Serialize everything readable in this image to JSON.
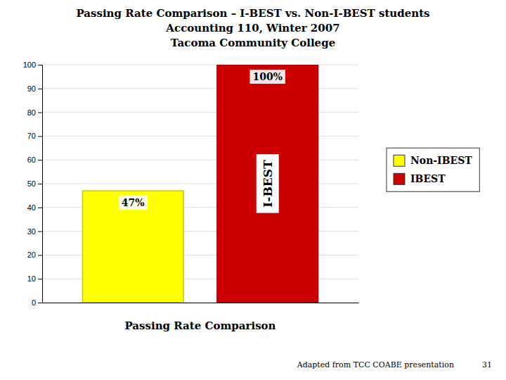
{
  "chart_data": {
    "type": "bar",
    "title": [
      "Passing Rate Comparison – I-BEST vs. Non-I-BEST students",
      "Accounting 110, Winter 2007",
      "Tacoma Community College"
    ],
    "x_label": "Passing Rate Comparison",
    "categories": [
      "Non-IBEST",
      "IBEST"
    ],
    "values": [
      47,
      100
    ],
    "value_labels": [
      "47%",
      "100%"
    ],
    "colors": [
      "#FFFF00",
      "#CC0000"
    ],
    "data_labels": true,
    "ylim": [
      0,
      100
    ],
    "yticks": [
      0,
      10,
      20,
      30,
      40,
      50,
      60,
      70,
      80,
      90,
      100
    ],
    "grid": true,
    "legend": "right",
    "tick_labels": "y",
    "annotations": [
      {
        "text": "I-BEST",
        "category": "IBEST"
      },
      {
        "text": "Adapted from TCC COABE presentation"
      },
      {
        "text": "31"
      }
    ]
  }
}
